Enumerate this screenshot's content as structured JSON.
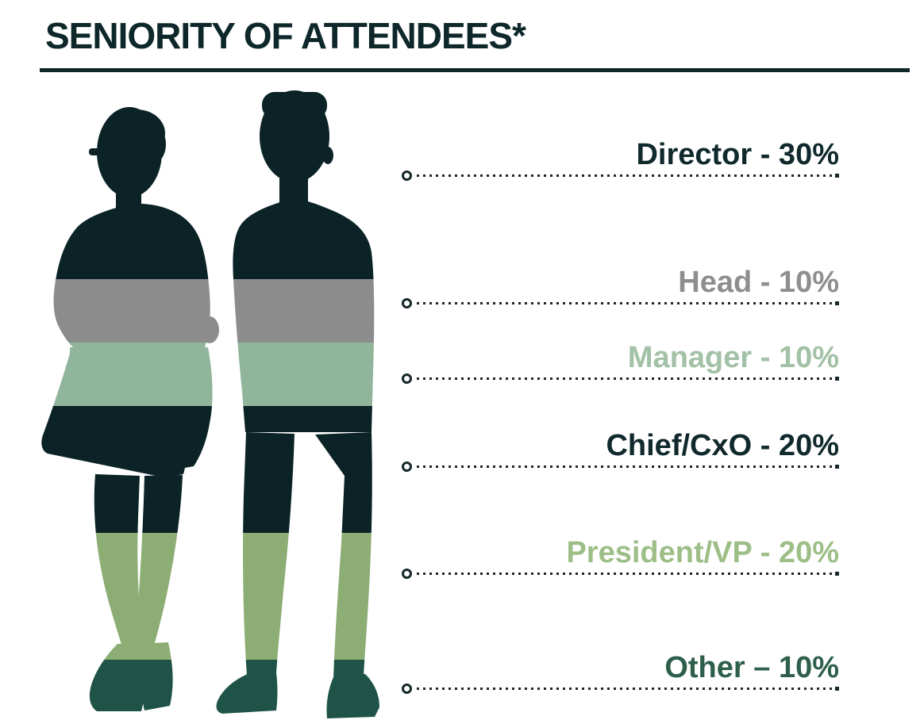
{
  "title": "SENIORITY OF ATTENDEES*",
  "chart_data": {
    "type": "bar",
    "title": "SENIORITY OF ATTENDEES*",
    "categories": [
      "Director",
      "Head",
      "Manager",
      "Chief/CxO",
      "President/VP",
      "Other"
    ],
    "values": [
      30,
      10,
      10,
      20,
      20,
      10
    ],
    "unit": "%",
    "band_colors": [
      "#0b2327",
      "#8c8c8c",
      "#90b59b",
      "#0b2327",
      "#8cad74",
      "#1f5347"
    ],
    "label_colors": [
      "#10292c",
      "#8e8e8e",
      "#a2c1a6",
      "#10292c",
      "#9dbf87",
      "#2d5f4b"
    ],
    "legend_position": "right",
    "presentation": "percentages drawn as stacked horizontal color bands (top to bottom) filling two standing human silhouettes (woman and man)"
  },
  "legend": {
    "items": [
      {
        "label": "Director - 30%",
        "role": "Director",
        "percent": 30
      },
      {
        "label": "Head - 10%",
        "role": "Head",
        "percent": 10
      },
      {
        "label": "Manager - 10%",
        "role": "Manager",
        "percent": 10
      },
      {
        "label": "Chief/CxO - 20%",
        "role": "Chief/CxO",
        "percent": 20
      },
      {
        "label": "President/VP - 20%",
        "role": "President/VP",
        "percent": 20
      },
      {
        "label": "Other – 10%",
        "role": "Other",
        "percent": 10
      }
    ]
  },
  "colors": {
    "title_text": "#0e272a",
    "underline": "#0e272a",
    "leader_line": "#1d2626",
    "background": "#ffffff"
  }
}
